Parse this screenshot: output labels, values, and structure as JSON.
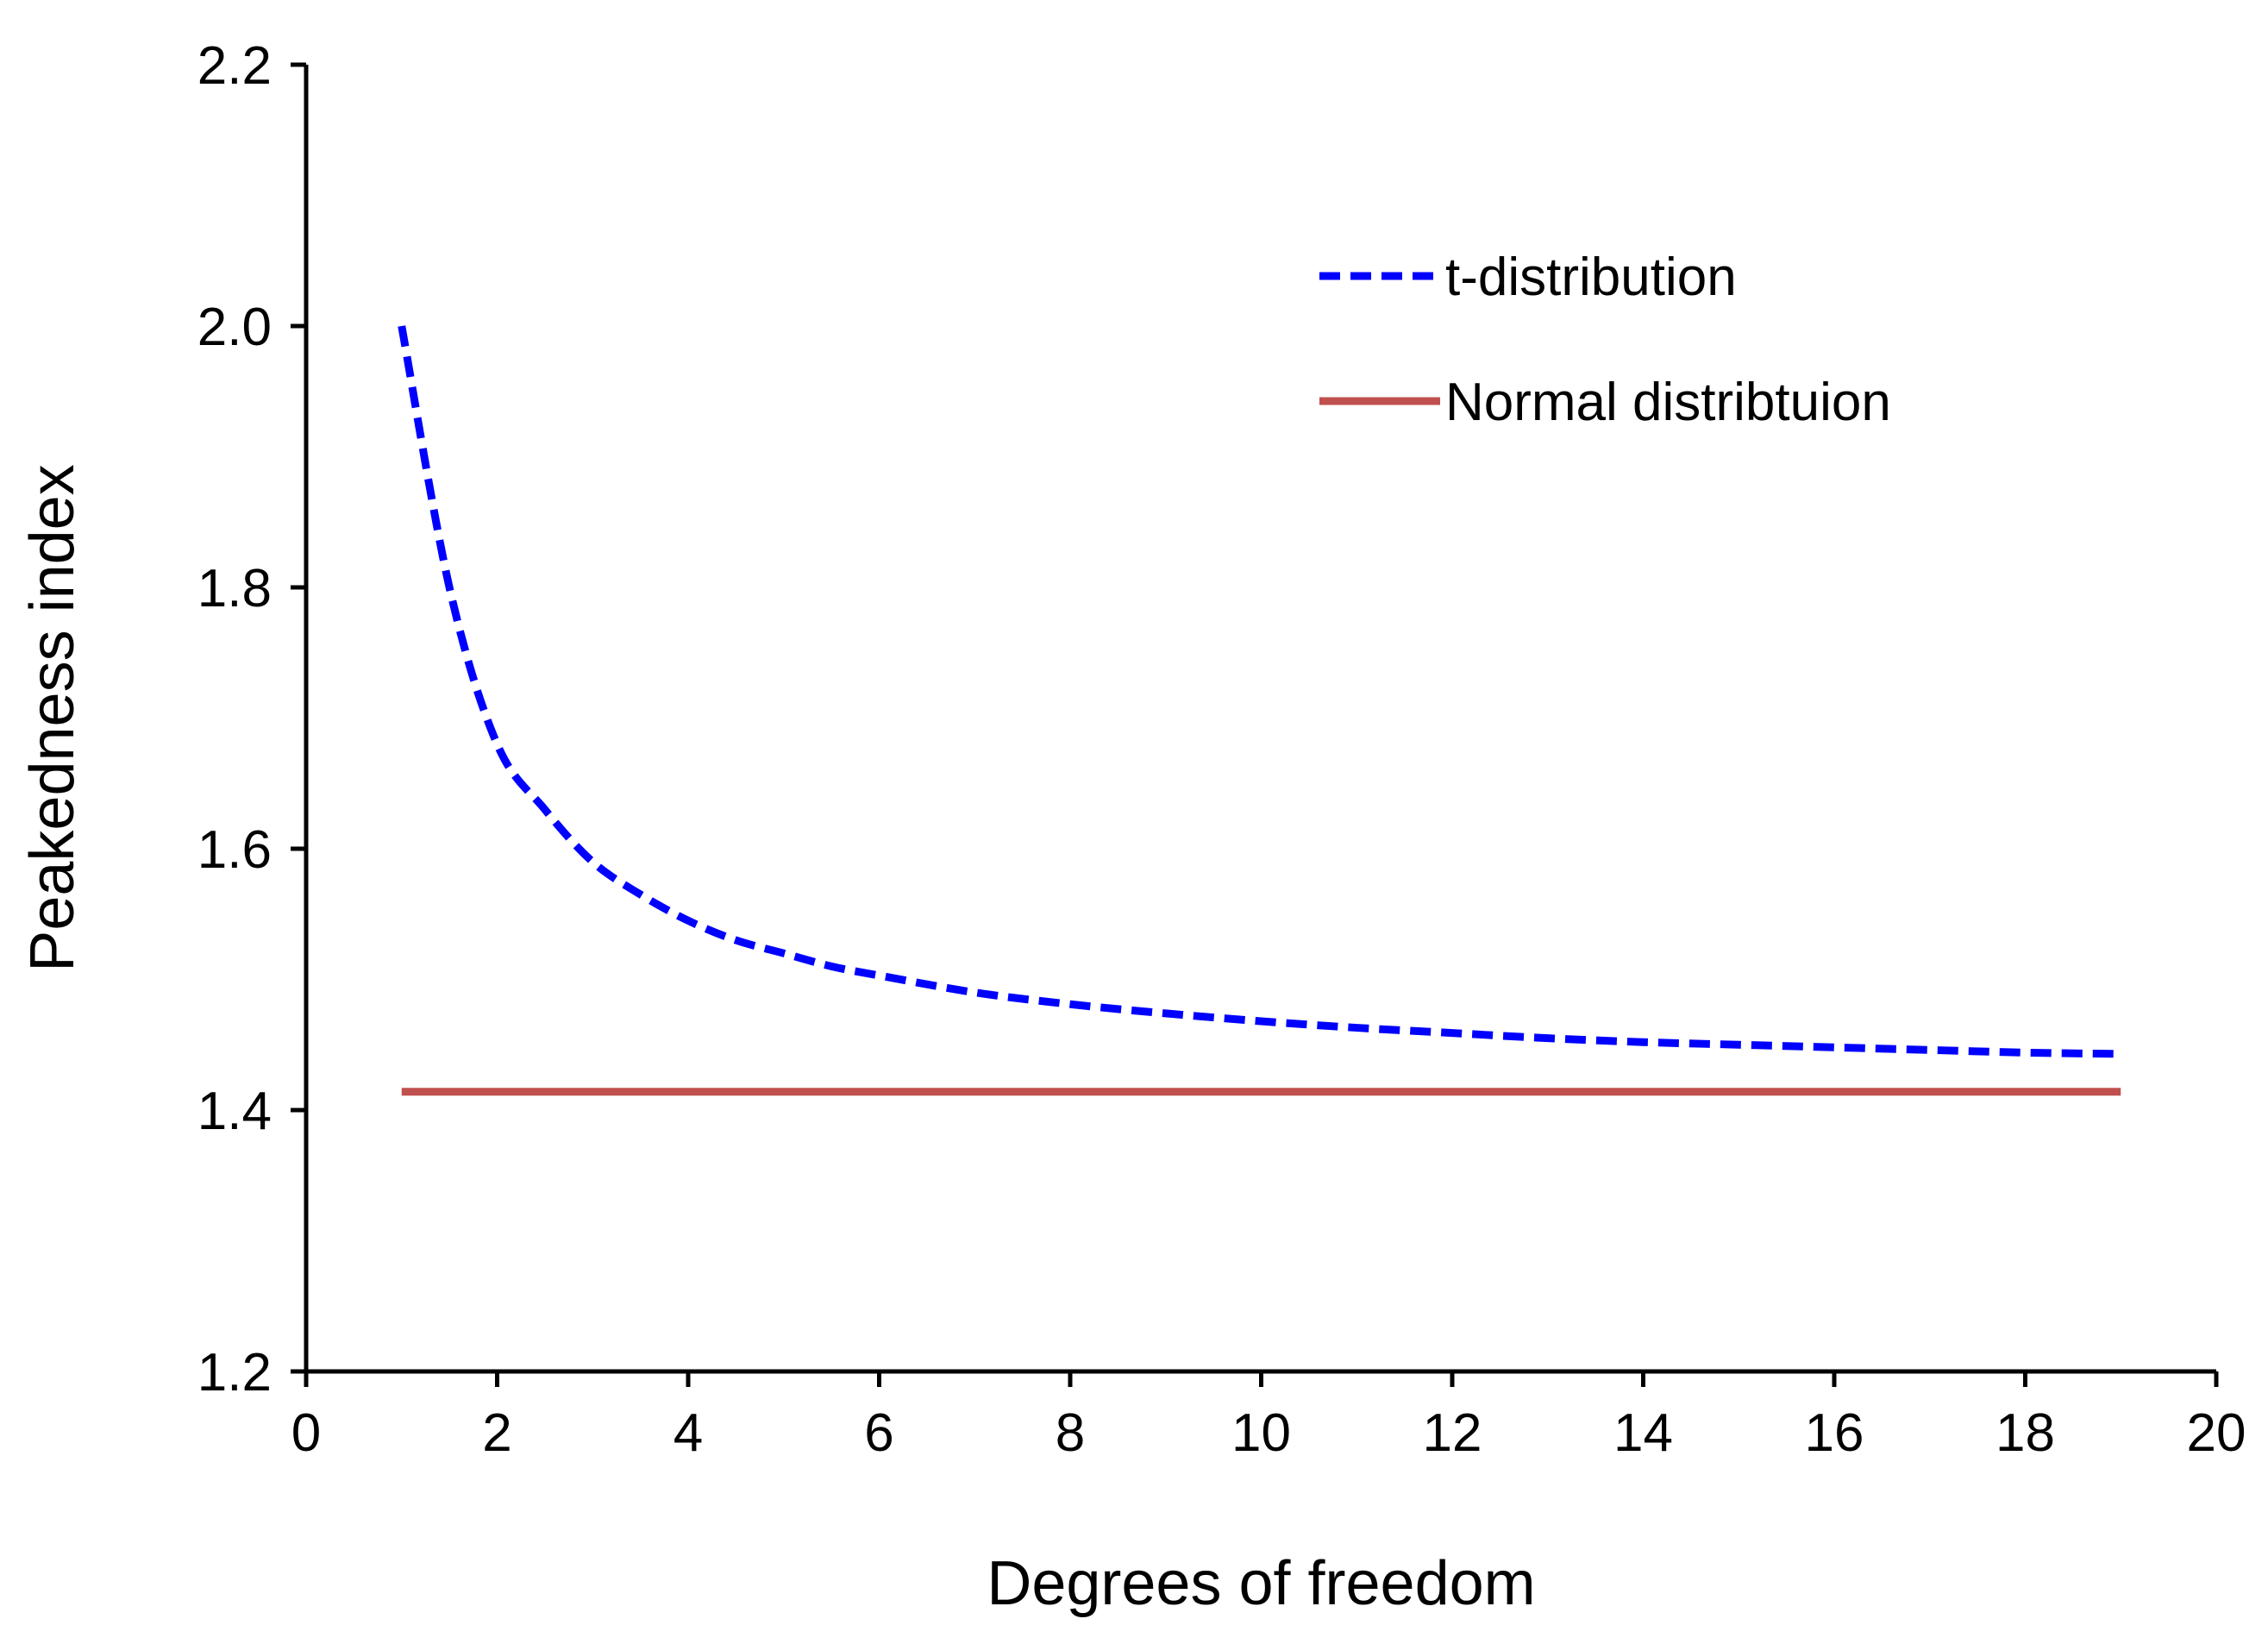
{
  "chart_data": {
    "type": "line",
    "title": "",
    "xlabel": "Degrees of freedom",
    "ylabel": "Peakedness index",
    "xlim": [
      0,
      20
    ],
    "ylim": [
      1.2,
      2.2
    ],
    "x_ticks": [
      "0",
      "2",
      "4",
      "6",
      "8",
      "10",
      "12",
      "14",
      "16",
      "18",
      "20"
    ],
    "y_ticks": [
      "1.2",
      "1.4",
      "1.6",
      "1.8",
      "2.0",
      "2.2"
    ],
    "grid": false,
    "legend": {
      "position": "top-right",
      "entries": [
        "t-distribution",
        "Normal distribtuion"
      ]
    },
    "series": [
      {
        "name": "t-distribution",
        "style": "dashed",
        "color": "#0000ff",
        "x": [
          1,
          1.5,
          2,
          2.5,
          3,
          3.5,
          4,
          4.5,
          5,
          5.5,
          6,
          7,
          8,
          9,
          10,
          11,
          12,
          13,
          14,
          15,
          16,
          17,
          18,
          19
        ],
        "y": [
          2.0,
          1.8,
          1.68,
          1.63,
          1.59,
          1.565,
          1.545,
          1.53,
          1.52,
          1.51,
          1.503,
          1.49,
          1.481,
          1.474,
          1.468,
          1.463,
          1.459,
          1.455,
          1.452,
          1.45,
          1.448,
          1.446,
          1.444,
          1.443
        ]
      },
      {
        "name": "Normal distribtuion",
        "style": "solid",
        "color": "#c0504d",
        "x": [
          1,
          19
        ],
        "y": [
          1.414,
          1.414
        ]
      }
    ]
  }
}
